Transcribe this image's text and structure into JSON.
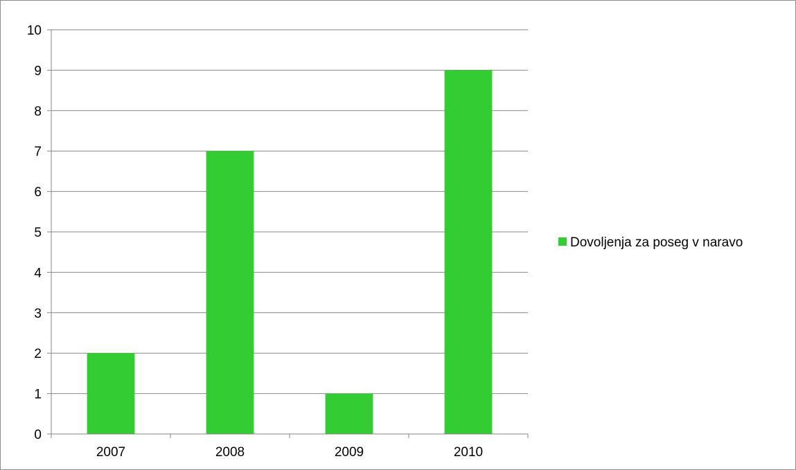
{
  "chart_data": {
    "type": "bar",
    "title": "",
    "xlabel": "",
    "ylabel": "",
    "categories": [
      "2007",
      "2008",
      "2009",
      "2010"
    ],
    "series": [
      {
        "name": "Dovoljenja za poseg v naravo",
        "values": [
          2,
          7,
          1,
          9
        ],
        "color": "#33cc33"
      }
    ],
    "ylim": [
      0,
      10
    ],
    "yticks": [
      "0",
      "1",
      "2",
      "3",
      "4",
      "5",
      "6",
      "7",
      "8",
      "9",
      "10"
    ],
    "grid": true,
    "legend_position": "right"
  }
}
